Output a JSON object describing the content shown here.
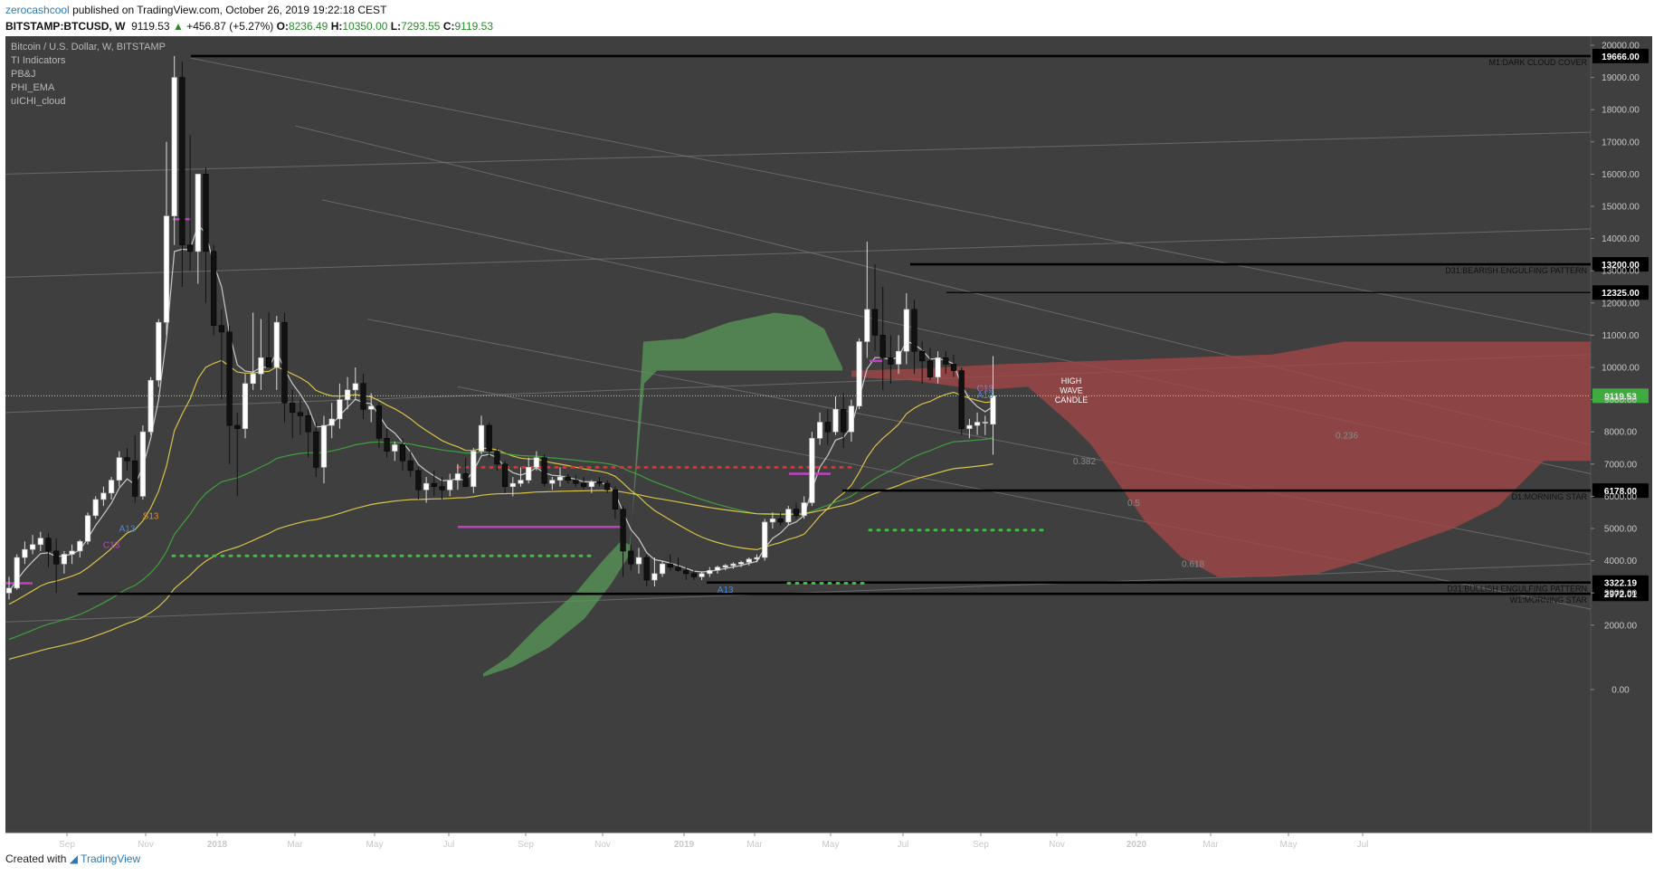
{
  "header": {
    "author": "zerocashcool",
    "published_text": "published on TradingView.com, October 26, 2019 19:22:18 CEST",
    "symbol": "BITSTAMP:BTCUSD, W",
    "last_price": "9119.53",
    "change_text": "+456.87 (+5.27%)",
    "o_label": "O:",
    "o_value": "8236.49",
    "h_label": "H:",
    "h_value": "10350.00",
    "l_label": "L:",
    "l_value": "7293.55",
    "c_label": "C:",
    "c_value": "9119.53"
  },
  "footer": {
    "created_with": "Created with",
    "brand": "TradingView"
  },
  "colors": {
    "background": "#3f3f3f",
    "up": "#ffffff",
    "down": "#111111",
    "cloud_bull": "#5a9a5a",
    "cloud_bear": "#a04646",
    "ema_fast": "#d8d8d8",
    "ema_mid": "#e8d24a",
    "ema_slow": "#3faa3f",
    "price_line": "#d0e040",
    "red_dots": "#e03030",
    "green_dots": "#3fbf3f"
  },
  "chart_data": {
    "type": "candlestick",
    "title": "Bitcoin / U.S. Dollar, W, BITSTAMP",
    "indicators": [
      "TI Indicators",
      "PB&J",
      "PHI_EMA",
      "uICHI_cloud"
    ],
    "ylim": [
      0,
      20000
    ],
    "y_ticks": [
      "20000.00",
      "19000.00",
      "18000.00",
      "17000.00",
      "16000.00",
      "15000.00",
      "14000.00",
      "13000.00",
      "12000.00",
      "11000.00",
      "10000.00",
      "9000.00",
      "8000.00",
      "7000.00",
      "6000.00",
      "5000.00",
      "4000.00",
      "3000.00",
      "2000.00",
      "0.00"
    ],
    "x_ticks": [
      "Sep",
      "Nov",
      "2018",
      "Mar",
      "May",
      "Jul",
      "Sep",
      "Nov",
      "2019",
      "Mar",
      "May",
      "Jul",
      "Sep",
      "Nov",
      "2020",
      "Mar",
      "May",
      "Jul"
    ],
    "ohlc": [
      [
        3000,
        3500,
        2800,
        3150
      ],
      [
        3150,
        4200,
        3100,
        4100
      ],
      [
        4100,
        4600,
        3900,
        4350
      ],
      [
        4350,
        4800,
        4200,
        4500
      ],
      [
        4500,
        4900,
        4300,
        4700
      ],
      [
        4700,
        4850,
        3800,
        4300
      ],
      [
        4300,
        4700,
        3000,
        3900
      ],
      [
        3900,
        4300,
        3600,
        4200
      ],
      [
        4200,
        4500,
        3900,
        4300
      ],
      [
        4300,
        4650,
        4100,
        4600
      ],
      [
        4600,
        5500,
        4500,
        5400
      ],
      [
        5400,
        6000,
        5300,
        5900
      ],
      [
        5900,
        6300,
        5700,
        6100
      ],
      [
        6100,
        6600,
        5900,
        6500
      ],
      [
        6500,
        7400,
        6300,
        7200
      ],
      [
        7200,
        7500,
        6800,
        7100
      ],
      [
        7100,
        7900,
        5800,
        6000
      ],
      [
        6000,
        8200,
        5900,
        8000
      ],
      [
        8000,
        9700,
        7900,
        9600
      ],
      [
        9600,
        11500,
        9400,
        11400
      ],
      [
        11400,
        17000,
        11000,
        14700
      ],
      [
        14700,
        19666,
        13800,
        19000
      ],
      [
        19000,
        19500,
        12500,
        13800
      ],
      [
        13800,
        17200,
        13000,
        13600
      ],
      [
        13600,
        16000,
        12600,
        16000
      ],
      [
        16000,
        16200,
        12000,
        13600
      ],
      [
        13600,
        13800,
        11000,
        11300
      ],
      [
        11300,
        11800,
        9000,
        11100
      ],
      [
        11100,
        11300,
        7000,
        8200
      ],
      [
        8200,
        8600,
        6000,
        8100
      ],
      [
        8100,
        9800,
        7800,
        9500
      ],
      [
        9500,
        11700,
        9300,
        9800
      ],
      [
        9800,
        11500,
        9300,
        10300
      ],
      [
        10300,
        11700,
        10000,
        10000
      ],
      [
        10000,
        11600,
        9300,
        11400
      ],
      [
        11400,
        11700,
        8300,
        8900
      ],
      [
        8900,
        9300,
        7800,
        8600
      ],
      [
        8600,
        9000,
        7900,
        8500
      ],
      [
        8500,
        8700,
        7200,
        8000
      ],
      [
        8000,
        8300,
        6600,
        6900
      ],
      [
        6900,
        8500,
        6400,
        8200
      ],
      [
        8200,
        8900,
        7800,
        8400
      ],
      [
        8400,
        9500,
        8100,
        9000
      ],
      [
        9000,
        9700,
        8700,
        9300
      ],
      [
        9300,
        10000,
        9000,
        9500
      ],
      [
        9500,
        9800,
        8400,
        8700
      ],
      [
        8700,
        9200,
        8300,
        8800
      ],
      [
        8800,
        8900,
        7500,
        7800
      ],
      [
        7800,
        8100,
        7200,
        7400
      ],
      [
        7400,
        7700,
        7100,
        7600
      ],
      [
        7600,
        7800,
        6800,
        7100
      ],
      [
        7100,
        7400,
        6600,
        6800
      ],
      [
        6800,
        6900,
        5900,
        6200
      ],
      [
        6200,
        6600,
        5800,
        6400
      ],
      [
        6400,
        6800,
        6000,
        6300
      ],
      [
        6300,
        6600,
        5900,
        6200
      ],
      [
        6200,
        6700,
        6000,
        6500
      ],
      [
        6500,
        7000,
        6200,
        6700
      ],
      [
        6700,
        7200,
        6400,
        6300
      ],
      [
        6300,
        7500,
        6100,
        7400
      ],
      [
        7400,
        8500,
        7300,
        8200
      ],
      [
        8200,
        8300,
        7200,
        7400
      ],
      [
        7400,
        7500,
        6800,
        7000
      ],
      [
        7000,
        7100,
        6100,
        6300
      ],
      [
        6300,
        6600,
        6000,
        6400
      ],
      [
        6400,
        6900,
        6300,
        6500
      ],
      [
        6500,
        7200,
        6400,
        6900
      ],
      [
        6900,
        7400,
        6800,
        7200
      ],
      [
        7200,
        7300,
        6300,
        6400
      ],
      [
        6400,
        6600,
        6200,
        6500
      ],
      [
        6500,
        6900,
        6300,
        6600
      ],
      [
        6600,
        6700,
        6400,
        6500
      ],
      [
        6500,
        6650,
        6300,
        6400
      ],
      [
        6400,
        6600,
        6200,
        6300
      ],
      [
        6300,
        6500,
        6100,
        6450
      ],
      [
        6450,
        6600,
        6300,
        6400
      ],
      [
        6400,
        6500,
        6100,
        6200
      ],
      [
        6200,
        6300,
        5300,
        5600
      ],
      [
        5600,
        5700,
        3500,
        4300
      ],
      [
        4300,
        4500,
        3700,
        3900
      ],
      [
        3900,
        4400,
        3600,
        4100
      ],
      [
        4100,
        4200,
        3200,
        3400
      ],
      [
        3400,
        4100,
        3200,
        3600
      ],
      [
        3600,
        4000,
        3500,
        3900
      ],
      [
        3900,
        4200,
        3700,
        3800
      ],
      [
        3800,
        4100,
        3650,
        3700
      ],
      [
        3700,
        3800,
        3400,
        3600
      ],
      [
        3600,
        3700,
        3400,
        3500
      ],
      [
        3500,
        3650,
        3400,
        3600
      ],
      [
        3600,
        3800,
        3500,
        3700
      ],
      [
        3700,
        3850,
        3600,
        3800
      ],
      [
        3800,
        3900,
        3700,
        3850
      ],
      [
        3850,
        3950,
        3750,
        3900
      ],
      [
        3900,
        4000,
        3800,
        3950
      ],
      [
        3950,
        4100,
        3850,
        4050
      ],
      [
        4050,
        4200,
        3950,
        4100
      ],
      [
        4100,
        5300,
        4000,
        5200
      ],
      [
        5200,
        5500,
        5000,
        5300
      ],
      [
        5300,
        5500,
        5100,
        5200
      ],
      [
        5200,
        5700,
        5100,
        5600
      ],
      [
        5600,
        5800,
        5300,
        5400
      ],
      [
        5400,
        6000,
        5300,
        5800
      ],
      [
        5800,
        8000,
        5700,
        7800
      ],
      [
        7800,
        8600,
        7600,
        8300
      ],
      [
        8300,
        8700,
        7600,
        8000
      ],
      [
        8000,
        9100,
        7900,
        8700
      ],
      [
        8700,
        9200,
        7500,
        8000
      ],
      [
        8000,
        9000,
        7700,
        8800
      ],
      [
        8800,
        10900,
        8700,
        10800
      ],
      [
        10800,
        13900,
        10300,
        11800
      ],
      [
        11800,
        13200,
        10500,
        11000
      ],
      [
        11000,
        12500,
        9300,
        10300
      ],
      [
        10300,
        11000,
        9500,
        10100
      ],
      [
        10100,
        11000,
        9800,
        10500
      ],
      [
        10500,
        12300,
        10100,
        11800
      ],
      [
        11800,
        12100,
        9800,
        10500
      ],
      [
        10500,
        10800,
        9500,
        10200
      ],
      [
        10200,
        10600,
        9600,
        9700
      ],
      [
        9700,
        10500,
        9500,
        10300
      ],
      [
        10300,
        10500,
        9800,
        10100
      ],
      [
        10100,
        10400,
        9700,
        9900
      ],
      [
        9900,
        10000,
        7900,
        8100
      ],
      [
        8100,
        8400,
        7800,
        8200
      ],
      [
        8200,
        8600,
        7900,
        8300
      ],
      [
        8300,
        8500,
        7900,
        8300
      ],
      [
        8236.49,
        10350,
        7293.55,
        9119.53
      ]
    ],
    "horizontal_levels": [
      {
        "price": 19666,
        "label": "M1:DARK CLOUD COVER",
        "value_label": "19666.00"
      },
      {
        "price": 13200,
        "label": "D31:BEARISH ENGULFING PATTERN",
        "value_label": "13200.00"
      },
      {
        "price": 12325,
        "label": "",
        "value_label": "12325.00"
      },
      {
        "price": 6178,
        "label": "D1:MORNING STAR",
        "value_label": "6178.00"
      },
      {
        "price": 3322.19,
        "label": "D31:BULLISH ENGULFING PATTERN",
        "value_label": "3322.19"
      },
      {
        "price": 2972.01,
        "label": "W1:MORNING STAR",
        "value_label": "2972.01"
      }
    ],
    "current_price_label": "9119.53",
    "fib_labels": [
      {
        "text": "0.382",
        "price": 7000
      },
      {
        "text": "0.5",
        "price": 5700
      },
      {
        "text": "0.618",
        "price": 3800
      },
      {
        "text": "0.236",
        "price": 7800
      }
    ],
    "annotations": [
      {
        "text": "HIGH",
        "price": 9500
      },
      {
        "text": "WAVE",
        "price": 9200
      },
      {
        "text": "CANDLE",
        "price": 8900
      }
    ],
    "markers": [
      {
        "text": "S13",
        "bar": 18,
        "price": 5300,
        "color": "#e08a2a"
      },
      {
        "text": "A13",
        "bar": 15,
        "price": 4900,
        "color": "#4a8ad0"
      },
      {
        "text": "C13",
        "bar": 13,
        "price": 4400,
        "color": "#c040c0"
      },
      {
        "text": "A13",
        "bar": 91,
        "price": 3000,
        "color": "#4a8ad0"
      },
      {
        "text": "C13",
        "bar": 124,
        "price": 9250,
        "color": "#8080d0"
      },
      {
        "text": "A13",
        "bar": 124,
        "price": 9050,
        "color": "#4a8ad0"
      }
    ]
  }
}
